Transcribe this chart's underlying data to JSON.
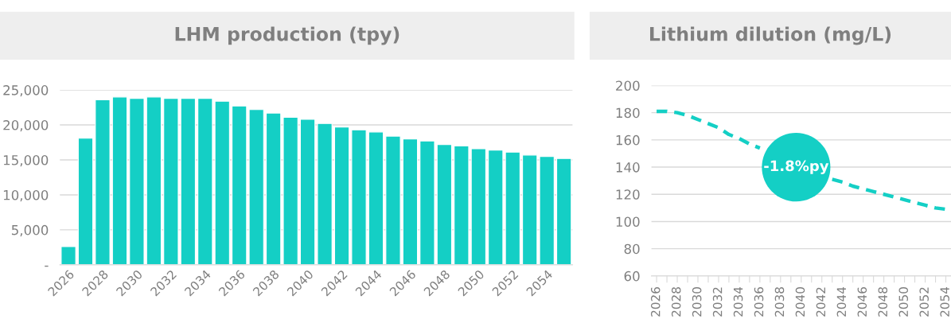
{
  "chart_data": [
    {
      "type": "bar",
      "title": "LHM production (tpy)",
      "categories": [
        "2026",
        null,
        "2028",
        null,
        "2030",
        null,
        "2032",
        null,
        "2034",
        null,
        "2036",
        null,
        "2038",
        null,
        "2040",
        null,
        "2042",
        null,
        "2044",
        null,
        "2046",
        null,
        "2048",
        null,
        "2050",
        null,
        "2052",
        null,
        "2054",
        null
      ],
      "values": [
        2600,
        18100,
        23600,
        24000,
        23800,
        24000,
        23800,
        23800,
        23800,
        23400,
        22700,
        22200,
        21700,
        21100,
        20800,
        20200,
        19700,
        19300,
        19000,
        18400,
        18000,
        17700,
        17200,
        17000,
        16600,
        16400,
        16100,
        15700,
        15500,
        15200
      ],
      "color": "#14cfc5",
      "ylim": [
        0,
        25000
      ],
      "yticks": [
        {
          "value": 0,
          "label": "-"
        },
        {
          "value": 5000,
          "label": "5,000"
        },
        {
          "value": 10000,
          "label": "10,000"
        },
        {
          "value": 15000,
          "label": "15,000"
        },
        {
          "value": 20000,
          "label": "20,000"
        },
        {
          "value": 25000,
          "label": "25,000"
        }
      ],
      "grid": "y"
    },
    {
      "type": "line",
      "title": "Lithium dilution (mg/L)",
      "categories": [
        "2026",
        null,
        "2028",
        null,
        "2030",
        null,
        "2032",
        null,
        "2034",
        null,
        "2036",
        null,
        "2038",
        null,
        "2040",
        null,
        "2042",
        null,
        "2044",
        null,
        "2046",
        null,
        "2048",
        null,
        "2050",
        null,
        "2052",
        null,
        "2054"
      ],
      "values": [
        181,
        181,
        180,
        178,
        175,
        172,
        169,
        164,
        161,
        157,
        154,
        null,
        null,
        null,
        null,
        null,
        null,
        131,
        129,
        126,
        124,
        122,
        120,
        118,
        116,
        114,
        112,
        110,
        109
      ],
      "color": "#14cfc5",
      "line_style": "dashed",
      "marker": "none",
      "ylim": [
        60,
        200
      ],
      "yticks": [
        60,
        80,
        100,
        120,
        140,
        160,
        180,
        200
      ],
      "grid": "y",
      "annotations": [
        "-1.8%py"
      ]
    }
  ]
}
